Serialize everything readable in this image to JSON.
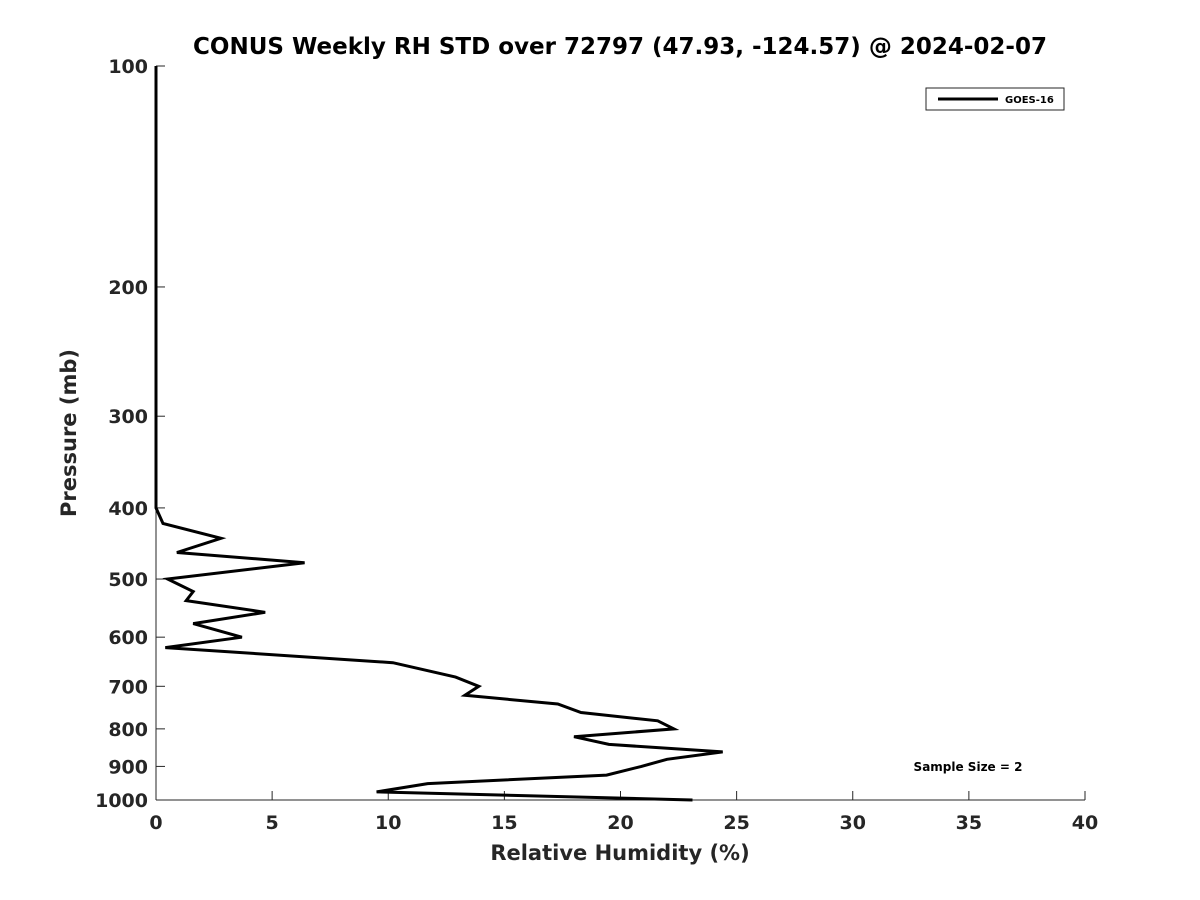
{
  "chart_data": {
    "type": "line",
    "title": "CONUS Weekly RH STD over 72797 (47.93, -124.57) @ 2024-02-07",
    "xlabel": "Relative Humidity (%)",
    "ylabel": "Pressure (mb)",
    "xlim": [
      0,
      40
    ],
    "ylim": [
      100,
      1000
    ],
    "y_scale": "log",
    "y_reversed": true,
    "x_ticks": [
      0,
      5,
      10,
      15,
      20,
      25,
      30,
      35,
      40
    ],
    "y_ticks": [
      100,
      200,
      300,
      400,
      500,
      600,
      700,
      800,
      900,
      1000
    ],
    "grid": false,
    "legend_position": "top-right",
    "annotation": "Sample Size = 2",
    "series": [
      {
        "name": "GOES-16",
        "color": "#000000",
        "points": [
          {
            "x": 0.0,
            "y": 100
          },
          {
            "x": 0.0,
            "y": 150
          },
          {
            "x": 0.0,
            "y": 200
          },
          {
            "x": 0.0,
            "y": 250
          },
          {
            "x": 0.0,
            "y": 300
          },
          {
            "x": 0.0,
            "y": 350
          },
          {
            "x": 0.0,
            "y": 400
          },
          {
            "x": 0.3,
            "y": 420
          },
          {
            "x": 2.8,
            "y": 440
          },
          {
            "x": 0.9,
            "y": 460
          },
          {
            "x": 6.4,
            "y": 475
          },
          {
            "x": 0.5,
            "y": 500
          },
          {
            "x": 1.6,
            "y": 520
          },
          {
            "x": 1.3,
            "y": 535
          },
          {
            "x": 4.7,
            "y": 555
          },
          {
            "x": 1.6,
            "y": 575
          },
          {
            "x": 3.7,
            "y": 600
          },
          {
            "x": 0.4,
            "y": 620
          },
          {
            "x": 10.2,
            "y": 650
          },
          {
            "x": 12.9,
            "y": 680
          },
          {
            "x": 13.9,
            "y": 700
          },
          {
            "x": 13.3,
            "y": 720
          },
          {
            "x": 17.3,
            "y": 740
          },
          {
            "x": 18.3,
            "y": 760
          },
          {
            "x": 21.6,
            "y": 780
          },
          {
            "x": 22.3,
            "y": 800
          },
          {
            "x": 18.0,
            "y": 820
          },
          {
            "x": 19.5,
            "y": 840
          },
          {
            "x": 24.4,
            "y": 860
          },
          {
            "x": 22.0,
            "y": 880
          },
          {
            "x": 20.9,
            "y": 900
          },
          {
            "x": 19.4,
            "y": 925
          },
          {
            "x": 11.7,
            "y": 950
          },
          {
            "x": 9.5,
            "y": 975
          },
          {
            "x": 23.1,
            "y": 1000
          }
        ]
      }
    ]
  }
}
